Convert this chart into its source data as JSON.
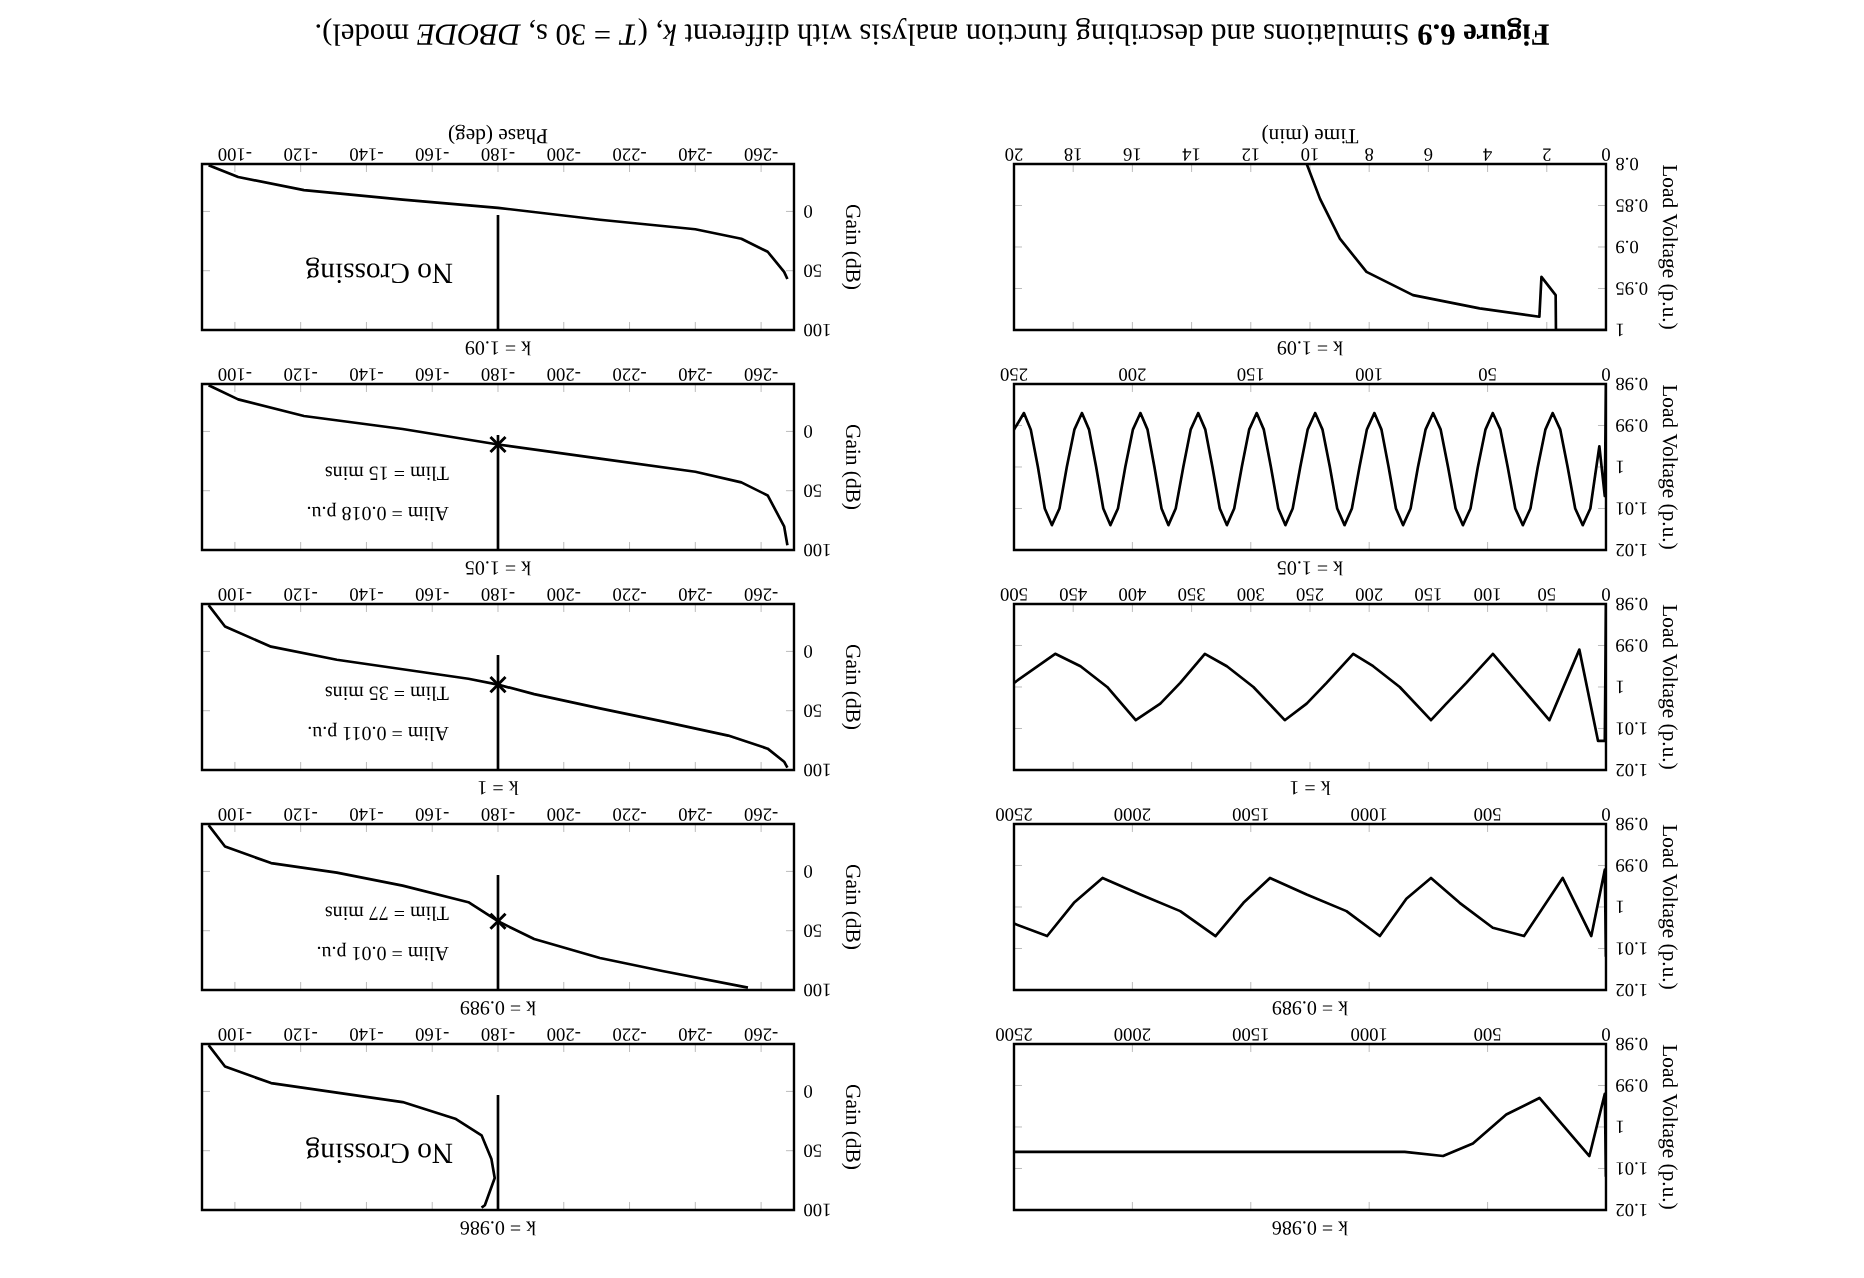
{
  "chart_data": [
    {
      "type": "line",
      "title": "k = 0.986",
      "ylabel": "Load Voltage (p.u.)",
      "xlim": [
        2500,
        0
      ],
      "ylim": [
        1.02,
        0.98
      ],
      "xticks": [
        0,
        500,
        1000,
        1500,
        2000,
        2500
      ],
      "yticks": [
        0.98,
        0.99,
        1,
        1.01,
        1.02
      ],
      "series": [
        {
          "color": "#000000",
          "x": [
            0,
            5,
            70,
            281,
            421,
            562,
            688,
            850,
            2500
          ],
          "values": [
            1.012,
            0.992,
            1.007,
            0.993,
            0.997,
            1.004,
            1.007,
            1.006,
            1.006
          ]
        }
      ]
    },
    {
      "type": "line",
      "title": "k = 0.986",
      "ylabel": "Gain (dB)",
      "xlim": [
        -90,
        -270
      ],
      "ylim": [
        100,
        -40
      ],
      "xticks": [
        -260,
        -240,
        -220,
        -200,
        -180,
        -160,
        -140,
        -120,
        -100
      ],
      "yticks": [
        0,
        50,
        100
      ],
      "annotations": [
        "No Crossing"
      ],
      "series": [
        {
          "color": "#000000",
          "x": [
            -92,
            -97,
            -111,
            -131,
            -151,
            -167,
            -175,
            -178,
            -179,
            -176,
            -175
          ],
          "values": [
            -39,
            -21,
            -7,
            1,
            9,
            23,
            37,
            57,
            73,
            96,
            98
          ]
        },
        {
          "color": "#000000",
          "x": [
            -180,
            -180
          ],
          "values": [
            3,
            100
          ]
        }
      ]
    },
    {
      "type": "line",
      "title": "k = 0.989",
      "ylabel": "Load Voltage (p.u.)",
      "xlim": [
        2500,
        0
      ],
      "ylim": [
        1.02,
        0.98
      ],
      "xticks": [
        0,
        500,
        1000,
        1500,
        2000,
        2500
      ],
      "yticks": [
        0.98,
        0.99,
        1,
        1.01,
        1.02
      ],
      "series": [
        {
          "color": "#000000",
          "x": [
            0,
            5,
            62,
            183,
            346,
            478,
            618,
            739,
            843,
            955,
            1096,
            1264,
            1419,
            1531,
            1649,
            1798,
            1966,
            2126,
            2247,
            2360,
            2500
          ],
          "values": [
            1.012,
            0.991,
            1.007,
            0.993,
            1.007,
            1.005,
            0.999,
            0.993,
            0.998,
            1.007,
            1.001,
            0.997,
            0.993,
            0.999,
            1.007,
            1.001,
            0.997,
            0.993,
            0.999,
            1.007,
            1.004
          ]
        }
      ]
    },
    {
      "type": "line",
      "title": "k = 0.989",
      "ylabel": "Gain (dB)",
      "xlim": [
        -90,
        -270
      ],
      "ylim": [
        100,
        -40
      ],
      "xticks": [
        -260,
        -240,
        -220,
        -200,
        -180,
        -160,
        -140,
        -120,
        -100
      ],
      "yticks": [
        0,
        50,
        100
      ],
      "annotations": [
        "Alim = 0.01 p.u.",
        "Tlim = 77 mins"
      ],
      "series": [
        {
          "color": "#000000",
          "x": [
            -92,
            -97,
            -111,
            -131,
            -151,
            -171,
            -180,
            -191,
            -211,
            -230,
            -256
          ],
          "values": [
            -39,
            -21,
            -7,
            1,
            12,
            26,
            42,
            57,
            73,
            84,
            98
          ]
        },
        {
          "color": "#000000",
          "x": [
            -180,
            -180
          ],
          "values": [
            3,
            100
          ]
        },
        {
          "type": "scatter",
          "marker": "cross",
          "color": "#000000",
          "x": [
            -180
          ],
          "values": [
            42
          ]
        }
      ]
    },
    {
      "type": "line",
      "title": "k = 1",
      "ylabel": "Load Voltage (p.u.)",
      "xlim": [
        500,
        0
      ],
      "ylim": [
        1.02,
        0.98
      ],
      "xticks": [
        0,
        50,
        100,
        150,
        200,
        250,
        300,
        350,
        400,
        450,
        500
      ],
      "yticks": [
        0.98,
        0.99,
        1,
        1.01,
        1.02
      ],
      "series": [
        {
          "color": "#000000",
          "x": [
            0,
            1,
            6.7,
            22.5,
            47.8,
            95.5,
            118,
            134.8,
            147.8,
            174.2,
            196.6,
            213.5,
            236,
            252.8,
            271.3,
            297.8,
            320.2,
            338.8,
            359.6,
            376.4,
            397.2,
            421.3,
            443.8,
            465.2,
            500
          ],
          "values": [
            0.98,
            1.013,
            1.013,
            0.991,
            1.008,
            0.992,
            0.999,
            1.004,
            1.008,
            1.0,
            0.995,
            0.992,
            0.999,
            1.004,
            1.008,
            1.0,
            0.995,
            0.992,
            0.999,
            1.004,
            1.008,
            1.0,
            0.995,
            0.992,
            0.999
          ]
        }
      ]
    },
    {
      "type": "line",
      "title": "k = 1",
      "ylabel": "Gain (dB)",
      "xlim": [
        -90,
        -270
      ],
      "ylim": [
        100,
        -40
      ],
      "xticks": [
        -260,
        -240,
        -220,
        -200,
        -180,
        -160,
        -140,
        -120,
        -100
      ],
      "yticks": [
        0,
        50,
        100
      ],
      "annotations": [
        "Alim = 0.011 p.u.",
        "Tlim = 35 mins"
      ],
      "series": [
        {
          "color": "#000000",
          "x": [
            -92,
            -97,
            -111,
            -131,
            -151,
            -171,
            -180,
            -191,
            -211,
            -230,
            -250,
            -262,
            -267,
            -268
          ],
          "values": [
            -39,
            -21,
            -4,
            7,
            15,
            23,
            28,
            36,
            48,
            59,
            71,
            82,
            93,
            98
          ]
        },
        {
          "color": "#000000",
          "x": [
            -180,
            -180
          ],
          "values": [
            3,
            100
          ]
        },
        {
          "type": "scatter",
          "marker": "cross",
          "color": "#000000",
          "x": [
            -180
          ],
          "values": [
            28
          ]
        }
      ]
    },
    {
      "type": "line",
      "title": "k = 1.05",
      "ylabel": "Load Voltage (p.u.)",
      "xlim": [
        250,
        0
      ],
      "ylim": [
        1.02,
        0.98
      ],
      "xticks": [
        0,
        50,
        100,
        150,
        200,
        250
      ],
      "yticks": [
        0.98,
        0.99,
        1,
        1.01,
        1.02
      ],
      "series": [
        {
          "color": "#000000",
          "x": [
            0,
            0.5,
            2.8,
            6.6,
            9.8,
            13,
            16.2,
            19.3,
            22.5,
            25.6,
            28.8,
            31.9,
            35.1,
            38.3,
            41.5,
            44.6,
            47.8,
            50.9,
            54.1,
            57.2,
            60.4,
            63.5,
            66.7,
            69.8,
            73,
            76.2,
            79.4,
            82.5,
            85.7,
            88.7,
            91.8,
            94.8,
            97.8,
            101,
            104.1,
            107.3,
            110.4,
            113.5,
            116.6,
            119.7,
            122.8,
            126,
            129.1,
            132.3,
            135.4,
            138.4,
            141.5,
            144.5,
            147.5,
            150.7,
            153.8,
            157,
            160.1,
            163.1,
            166.2,
            169.2,
            172.2,
            175.4,
            178.5,
            181.7,
            184.8,
            187.7,
            190.7,
            193.6,
            196.6,
            199.8,
            203,
            206.1,
            209.3,
            212.3,
            215.3,
            218.3,
            221.3,
            224.5,
            227.7,
            230.8,
            234,
            237,
            239.9,
            242.9,
            245.8,
            250
          ],
          "values": [
            0.98,
            1.007,
            0.995,
            1.01,
            1.014,
            1.01,
            1.0,
            0.991,
            0.987,
            0.991,
            1.0,
            1.01,
            1.014,
            1.01,
            1.0,
            0.991,
            0.987,
            0.991,
            1.0,
            1.01,
            1.014,
            1.01,
            1.0,
            0.991,
            0.987,
            0.991,
            1.0,
            1.01,
            1.014,
            1.01,
            1.0,
            0.991,
            0.987,
            0.991,
            1.0,
            1.01,
            1.014,
            1.01,
            1.0,
            0.991,
            0.987,
            0.991,
            1.0,
            1.01,
            1.014,
            1.01,
            1.0,
            0.991,
            0.987,
            0.991,
            1.0,
            1.01,
            1.014,
            1.01,
            1.0,
            0.991,
            0.987,
            0.991,
            1.0,
            1.01,
            1.014,
            1.01,
            1.0,
            0.991,
            0.987,
            0.991,
            1.0,
            1.01,
            1.014,
            1.01,
            1.0,
            0.991,
            0.987,
            0.991,
            1.0,
            1.01,
            1.014,
            1.01,
            1.0,
            0.991,
            0.987,
            0.991
          ]
        }
      ]
    },
    {
      "type": "line",
      "title": "k = 1.05",
      "ylabel": "Gain (dB)",
      "xlim": [
        -90,
        -270
      ],
      "ylim": [
        100,
        -40
      ],
      "xticks": [
        -260,
        -240,
        -220,
        -200,
        -180,
        -160,
        -140,
        -120,
        -100
      ],
      "yticks": [
        0,
        50,
        100
      ],
      "annotations": [
        "Alim = 0.018 p.u.",
        "Tlim = 15 mins"
      ],
      "series": [
        {
          "color": "#000000",
          "x": [
            -92,
            -101,
            -121,
            -151,
            -180,
            -211,
            -240,
            -254,
            -262,
            -267,
            -268
          ],
          "values": [
            -39,
            -27,
            -13,
            -2,
            11,
            23,
            34,
            43,
            54,
            80,
            96
          ]
        },
        {
          "color": "#000000",
          "x": [
            -180,
            -180
          ],
          "values": [
            3,
            100
          ]
        },
        {
          "type": "scatter",
          "marker": "cross",
          "color": "#000000",
          "x": [
            -180
          ],
          "values": [
            11
          ]
        }
      ]
    },
    {
      "type": "line",
      "title": "k = 1.09",
      "xlabel": "Time (min)",
      "ylabel": "Load Voltage (p.u.)",
      "xlim": [
        20,
        0
      ],
      "ylim": [
        1,
        0.8
      ],
      "xticks": [
        0,
        2,
        4,
        6,
        8,
        10,
        12,
        14,
        16,
        18,
        20
      ],
      "yticks": [
        0.8,
        0.85,
        0.9,
        0.95,
        1
      ],
      "series": [
        {
          "color": "#000000",
          "x": [
            0,
            1.69,
            1.7,
            2.18,
            2.25,
            4.27,
            6.52,
            8.09,
            8.99,
            9.66,
            10.11
          ],
          "values": [
            1.0,
            1.0,
            0.958,
            0.936,
            0.984,
            0.974,
            0.958,
            0.93,
            0.89,
            0.842,
            0.8
          ]
        }
      ]
    },
    {
      "type": "line",
      "title": "k = 1.09",
      "xlabel": "Phase (deg)",
      "ylabel": "Gain (dB)",
      "xlim": [
        -90,
        -270
      ],
      "ylim": [
        100,
        -40
      ],
      "xticks": [
        -260,
        -240,
        -220,
        -200,
        -180,
        -160,
        -140,
        -120,
        -100
      ],
      "yticks": [
        0,
        50,
        100
      ],
      "annotations": [
        "No Crossing"
      ],
      "series": [
        {
          "color": "#000000",
          "x": [
            -92,
            -101,
            -121,
            -151,
            -180,
            -211,
            -240,
            -254,
            -262,
            -267,
            -268
          ],
          "values": [
            -39,
            -29,
            -18,
            -10,
            -3,
            7,
            15,
            23,
            34,
            51,
            57
          ]
        },
        {
          "color": "#000000",
          "x": [
            -180,
            -180
          ],
          "values": [
            3,
            100
          ]
        }
      ]
    },
    {
      "type": "other",
      "annotations": [
        "**Figure 6.9** Simulations and describing function analysis with different *k*, (*T* = 30 s, *DBODE* model)."
      ]
    }
  ]
}
